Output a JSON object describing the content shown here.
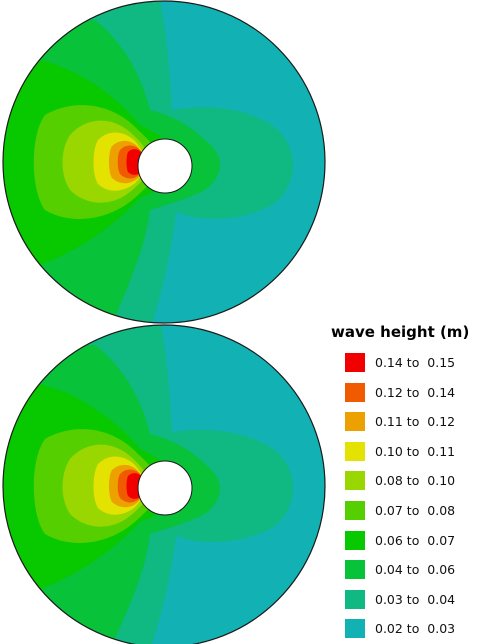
{
  "chart_data": {
    "type": "heatmap",
    "subtype": "filled-contour",
    "panels": [
      {
        "name": "",
        "has_circular_obstacle": true
      },
      {
        "name": "",
        "has_circular_obstacle": true
      }
    ],
    "colorbar": {
      "title": "wave height (m)",
      "bins": [
        {
          "label": "0.14 to  0.15",
          "min": 0.14,
          "max": 0.15,
          "color": "#f20000"
        },
        {
          "label": "0.12 to  0.14",
          "min": 0.12,
          "max": 0.14,
          "color": "#f05a00"
        },
        {
          "label": "0.11 to  0.12",
          "min": 0.11,
          "max": 0.12,
          "color": "#eca100"
        },
        {
          "label": "0.10 to  0.11",
          "min": 0.1,
          "max": 0.11,
          "color": "#e4e200"
        },
        {
          "label": "0.08 to  0.10",
          "min": 0.08,
          "max": 0.1,
          "color": "#9ad600"
        },
        {
          "label": "0.07 to  0.08",
          "min": 0.07,
          "max": 0.08,
          "color": "#55cf00"
        },
        {
          "label": "0.06 to  0.07",
          "min": 0.06,
          "max": 0.07,
          "color": "#08c800"
        },
        {
          "label": "0.04 to  0.06",
          "min": 0.04,
          "max": 0.06,
          "color": "#08c23a"
        },
        {
          "label": "0.03 to  0.04",
          "min": 0.03,
          "max": 0.04,
          "color": "#10b882"
        },
        {
          "label": "0.02 to  0.03",
          "min": 0.02,
          "max": 0.03,
          "color": "#12b2b4"
        }
      ]
    }
  }
}
